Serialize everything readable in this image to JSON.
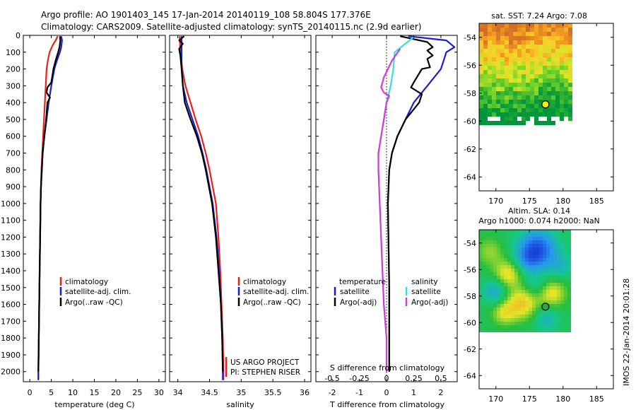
{
  "header": {
    "line1": "Argo profile: AO 1901403_145 17-Jan-2014 20140119_108 58.804S 177.376E",
    "line2": "Climatology: CARS2009. Satellite-adjusted climatology: synTS_20140115.nc (2.9d earlier)"
  },
  "colors": {
    "climatology": "#e8211c",
    "satellite": "#1c1cd6",
    "argo": "#000000",
    "sat_salinity": "#33e0e0",
    "argo_salinity": "#d838d8"
  },
  "depth_ticks": [
    0,
    100,
    200,
    300,
    400,
    500,
    600,
    700,
    800,
    900,
    1000,
    1100,
    1200,
    1300,
    1400,
    1500,
    1600,
    1700,
    1800,
    1900,
    2000
  ],
  "chart_data": [
    {
      "id": "temperature",
      "type": "line",
      "xlabel": "temperature (deg C)",
      "xlim": [
        -1.5,
        31.5
      ],
      "ylim": [
        2060,
        0
      ],
      "xticks": [
        0,
        5,
        10,
        15,
        20,
        25,
        30
      ],
      "legend": [
        "climatology",
        "satellite-adj. clim.",
        "Argo(..raw -QC)"
      ],
      "series": [
        {
          "name": "climatology",
          "color": "#e8211c",
          "points": [
            [
              6.5,
              5
            ],
            [
              6.0,
              30
            ],
            [
              5.3,
              60
            ],
            [
              4.6,
              100
            ],
            [
              4.2,
              150
            ],
            [
              3.9,
              200
            ],
            [
              3.7,
              300
            ],
            [
              3.5,
              400
            ],
            [
              3.3,
              500
            ],
            [
              3.1,
              600
            ],
            [
              2.9,
              700
            ],
            [
              2.7,
              800
            ],
            [
              2.6,
              900
            ],
            [
              2.5,
              1000
            ],
            [
              2.4,
              1200
            ],
            [
              2.3,
              1400
            ],
            [
              2.2,
              1600
            ],
            [
              2.1,
              1800
            ],
            [
              2.0,
              2000
            ],
            [
              2.0,
              2050
            ]
          ]
        },
        {
          "name": "satellite-adj. clim.",
          "color": "#1c1cd6",
          "points": [
            [
              7.3,
              5
            ],
            [
              7.5,
              30
            ],
            [
              7.3,
              70
            ],
            [
              7.0,
              100
            ],
            [
              6.3,
              150
            ],
            [
              5.7,
              200
            ],
            [
              5.0,
              300
            ],
            [
              4.4,
              400
            ],
            [
              3.9,
              500
            ],
            [
              3.4,
              600
            ],
            [
              3.0,
              700
            ],
            [
              2.8,
              800
            ],
            [
              2.6,
              900
            ],
            [
              2.5,
              1000
            ],
            [
              2.4,
              1200
            ],
            [
              2.3,
              1400
            ],
            [
              2.2,
              1600
            ],
            [
              2.1,
              1800
            ],
            [
              2.0,
              2000
            ],
            [
              2.0,
              2050
            ]
          ]
        },
        {
          "name": "Argo(..raw -QC)",
          "color": "#000000",
          "points": [
            [
              7.0,
              5
            ],
            [
              7.1,
              30
            ],
            [
              6.9,
              70
            ],
            [
              6.6,
              100
            ],
            [
              6.0,
              150
            ],
            [
              5.5,
              200
            ],
            [
              5.0,
              280
            ],
            [
              4.1,
              310
            ],
            [
              3.9,
              340
            ],
            [
              4.7,
              370
            ],
            [
              4.1,
              400
            ],
            [
              3.8,
              500
            ],
            [
              3.4,
              600
            ],
            [
              3.0,
              700
            ],
            [
              2.8,
              800
            ],
            [
              2.6,
              900
            ],
            [
              2.5,
              1000
            ],
            [
              2.4,
              1200
            ],
            [
              2.3,
              1400
            ],
            [
              2.2,
              1600
            ],
            [
              2.1,
              1800
            ],
            [
              2.0,
              2000
            ]
          ]
        }
      ]
    },
    {
      "id": "salinity",
      "type": "line",
      "xlabel": "salinity",
      "xlim": [
        33.87,
        36.1
      ],
      "ylim": [
        2060,
        0
      ],
      "xticks": [
        34,
        34.5,
        35,
        35.5,
        36
      ],
      "xticklabels": [
        "34",
        "34.5",
        "35",
        "35.5",
        "36"
      ],
      "legend": [
        "climatology",
        "satellite-adj. clim.",
        "Argo(..raw -QC)"
      ],
      "annotations": [
        "US ARGO PROJECT",
        "PI: STEPHEN RISER"
      ],
      "series": [
        {
          "name": "climatology",
          "color": "#e8211c",
          "points": [
            [
              34.03,
              5
            ],
            [
              34.04,
              100
            ],
            [
              34.07,
              200
            ],
            [
              34.12,
              300
            ],
            [
              34.2,
              400
            ],
            [
              34.28,
              500
            ],
            [
              34.37,
              600
            ],
            [
              34.44,
              700
            ],
            [
              34.5,
              800
            ],
            [
              34.55,
              900
            ],
            [
              34.6,
              1000
            ],
            [
              34.64,
              1200
            ],
            [
              34.67,
              1400
            ],
            [
              34.69,
              1600
            ],
            [
              34.71,
              1800
            ],
            [
              34.72,
              2000
            ],
            [
              34.72,
              2050
            ]
          ]
        },
        {
          "name": "satellite-adj. clim.",
          "color": "#1c1cd6",
          "points": [
            [
              34.06,
              5
            ],
            [
              34.06,
              100
            ],
            [
              34.06,
              200
            ],
            [
              34.08,
              300
            ],
            [
              34.14,
              400
            ],
            [
              34.23,
              500
            ],
            [
              34.32,
              600
            ],
            [
              34.39,
              700
            ],
            [
              34.45,
              800
            ],
            [
              34.5,
              900
            ],
            [
              34.55,
              1000
            ],
            [
              34.61,
              1200
            ],
            [
              34.65,
              1400
            ],
            [
              34.68,
              1600
            ],
            [
              34.7,
              1800
            ],
            [
              34.71,
              2000
            ],
            [
              34.71,
              2050
            ]
          ]
        },
        {
          "name": "Argo(..raw -QC)",
          "color": "#000000",
          "points": [
            [
              34.1,
              5
            ],
            [
              34.02,
              30
            ],
            [
              34.08,
              50
            ],
            [
              34.02,
              80
            ],
            [
              34.04,
              120
            ],
            [
              34.06,
              200
            ],
            [
              34.08,
              300
            ],
            [
              34.11,
              400
            ],
            [
              34.2,
              500
            ],
            [
              34.3,
              600
            ],
            [
              34.38,
              700
            ],
            [
              34.44,
              800
            ],
            [
              34.49,
              900
            ],
            [
              34.54,
              1000
            ],
            [
              34.6,
              1200
            ],
            [
              34.64,
              1400
            ],
            [
              34.68,
              1600
            ],
            [
              34.7,
              1800
            ],
            [
              34.71,
              2000
            ]
          ]
        }
      ]
    },
    {
      "id": "difference",
      "type": "line",
      "xlabel": "T difference from climatology",
      "xlabel2": "S difference from climatology",
      "xlim": [
        -2.6,
        2.6
      ],
      "ylim": [
        2060,
        0
      ],
      "xticks": [
        -2,
        -1,
        0,
        1,
        2
      ],
      "xticks_s": [
        -0.5,
        -0.25,
        0,
        0.25,
        0.5
      ],
      "xticklabels_s": [
        "-0.5",
        "-0.25",
        "0",
        "0.25",
        "0.5"
      ],
      "legend_headers": [
        "temperature",
        "salinity"
      ],
      "legend": [
        "satellite",
        "Argo(-adj)",
        "satellite",
        "Argo(-adj)"
      ],
      "series": [
        {
          "name": "satellite",
          "color": "#1c1cd6",
          "points": [
            [
              0.8,
              5
            ],
            [
              2.2,
              30
            ],
            [
              2.5,
              70
            ],
            [
              2.2,
              100
            ],
            [
              2.1,
              150
            ],
            [
              2.0,
              200
            ],
            [
              1.5,
              300
            ],
            [
              1.0,
              400
            ],
            [
              0.7,
              500
            ],
            [
              0.4,
              600
            ],
            [
              0.2,
              700
            ],
            [
              0.1,
              800
            ],
            [
              0.05,
              1000
            ],
            [
              0.1,
              1500
            ],
            [
              0.1,
              2000
            ]
          ]
        },
        {
          "name": "Argo(-adj)",
          "color": "#000000",
          "points": [
            [
              0.5,
              5
            ],
            [
              1.5,
              40
            ],
            [
              1.7,
              70
            ],
            [
              1.5,
              90
            ],
            [
              1.7,
              120
            ],
            [
              1.5,
              140
            ],
            [
              1.6,
              190
            ],
            [
              1.3,
              200
            ],
            [
              1.0,
              280
            ],
            [
              0.9,
              310
            ],
            [
              1.3,
              350
            ],
            [
              1.2,
              400
            ],
            [
              0.7,
              500
            ],
            [
              0.4,
              600
            ],
            [
              0.2,
              700
            ],
            [
              0.1,
              800
            ],
            [
              0.05,
              1000
            ],
            [
              0.1,
              1500
            ],
            [
              0.1,
              2000
            ]
          ]
        },
        {
          "name": "satellite",
          "color": "#33e0e0",
          "points": [
            [
              1.0,
              10
            ],
            [
              0.3,
              100
            ],
            [
              0.25,
              200
            ],
            [
              0.15,
              300
            ],
            [
              0.0,
              400
            ],
            [
              -0.1,
              500
            ],
            [
              -0.2,
              600
            ],
            [
              -0.3,
              700
            ],
            [
              -0.3,
              800
            ],
            [
              -0.25,
              1000
            ],
            [
              -0.2,
              1200
            ],
            [
              -0.15,
              1400
            ],
            [
              -0.1,
              1600
            ],
            [
              0.0,
              1800
            ],
            [
              0.0,
              2000
            ]
          ]
        },
        {
          "name": "Argo(-adj)",
          "color": "#d838d8",
          "points": [
            [
              0.5,
              80
            ],
            [
              0.2,
              150
            ],
            [
              -0.1,
              250
            ],
            [
              -0.2,
              310
            ],
            [
              -0.1,
              340
            ],
            [
              0.1,
              360
            ],
            [
              0.0,
              400
            ],
            [
              -0.1,
              500
            ],
            [
              -0.2,
              600
            ],
            [
              -0.3,
              700
            ],
            [
              -0.3,
              800
            ],
            [
              -0.25,
              1000
            ],
            [
              -0.2,
              1200
            ],
            [
              -0.15,
              1400
            ],
            [
              -0.1,
              1600
            ],
            [
              0.0,
              1800
            ],
            [
              0.0,
              2000
            ]
          ]
        }
      ]
    },
    {
      "id": "sst_map",
      "type": "heatmap",
      "title": "sat. SST: 7.24 Argo: 7.08",
      "xlim": [
        167.5,
        187.5
      ],
      "ylim": [
        -65,
        -53
      ],
      "xticks": [
        170,
        175,
        180,
        185
      ],
      "yticks": [
        -54,
        -56,
        -58,
        -60,
        -62,
        -64
      ],
      "argo_position": [
        177.376,
        -58.804
      ]
    },
    {
      "id": "sla_map",
      "type": "heatmap",
      "title": "Altim. SLA: 0.14",
      "subtitle": "Argo h1000: 0.074 h2000: NaN",
      "xlim": [
        167.5,
        187.5
      ],
      "ylim": [
        -65,
        -53
      ],
      "xticks": [
        170,
        175,
        180,
        185
      ],
      "yticks": [
        -54,
        -56,
        -58,
        -60,
        -62,
        -64
      ],
      "argo_position": [
        177.376,
        -58.804
      ]
    }
  ],
  "footer": {
    "side_label": "IMOS 22-Jan-2014 20:01:28"
  }
}
